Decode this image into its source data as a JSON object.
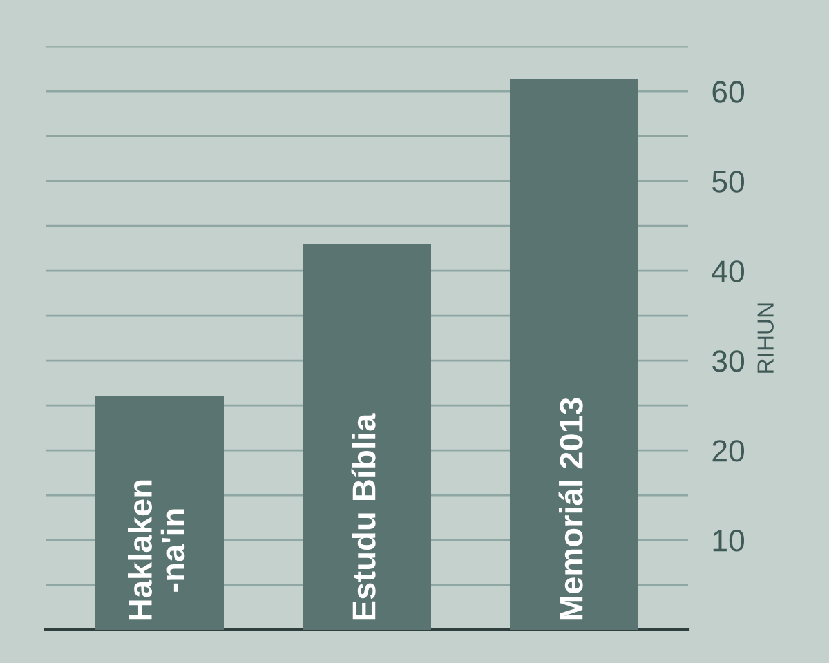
{
  "chart_data": {
    "type": "bar",
    "ylabel": "RIHUN",
    "categories": [
      "Haklaken\n-na'in",
      "Estudu Bíblia",
      "Memoriál 2013"
    ],
    "values": [
      26,
      43,
      61.4
    ],
    "color": "#5a7471",
    "ylim": [
      0,
      65
    ],
    "yticks": [
      {
        "value": 5,
        "label": null
      },
      10,
      {
        "value": 15,
        "label": null
      },
      20,
      {
        "value": 25,
        "label": null
      },
      30,
      {
        "value": 35,
        "label": null
      },
      40,
      {
        "value": 45,
        "label": null
      },
      50,
      {
        "value": 55,
        "label": null
      },
      60,
      {
        "value": 65,
        "label": null
      }
    ],
    "grid": "y"
  }
}
